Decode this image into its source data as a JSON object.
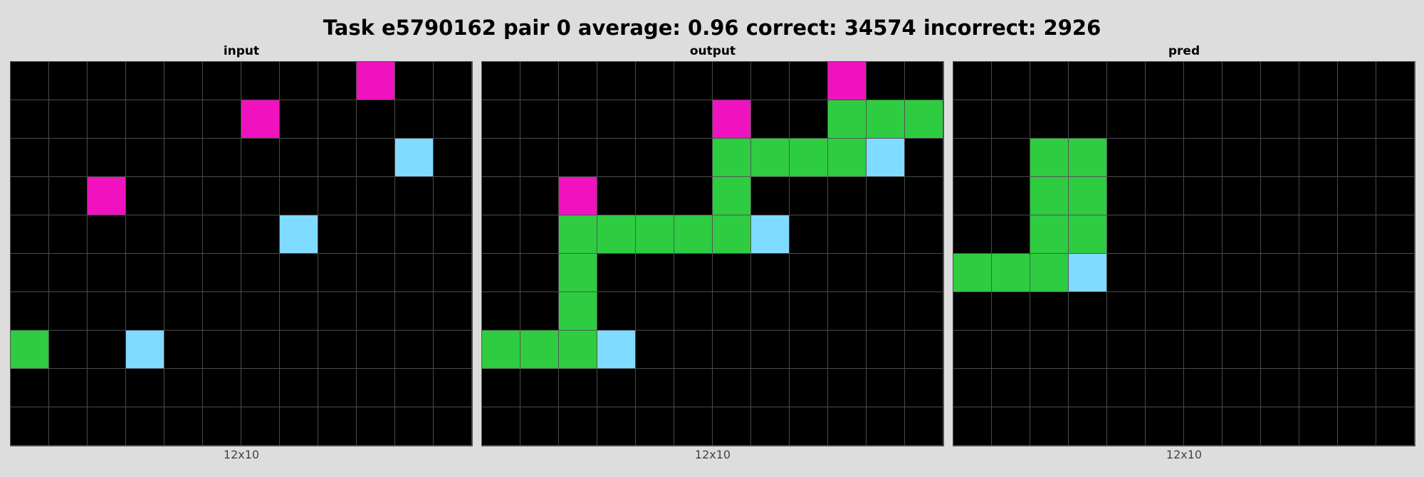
{
  "title": "Task e5790162 pair 0 average: 0.96 correct: 34574 incorrect: 2926",
  "colors": {
    "0": "#000000",
    "2": "#2ecc40",
    "6": "#f012be",
    "8": "#7fdbff"
  },
  "panels": [
    {
      "title": "input",
      "caption": "12x10",
      "grid": [
        [
          0,
          0,
          0,
          0,
          0,
          0,
          0,
          0,
          0,
          6,
          0,
          0
        ],
        [
          0,
          0,
          0,
          0,
          0,
          0,
          6,
          0,
          0,
          0,
          0,
          0
        ],
        [
          0,
          0,
          0,
          0,
          0,
          0,
          0,
          0,
          0,
          0,
          8,
          0
        ],
        [
          0,
          0,
          6,
          0,
          0,
          0,
          0,
          0,
          0,
          0,
          0,
          0
        ],
        [
          0,
          0,
          0,
          0,
          0,
          0,
          0,
          8,
          0,
          0,
          0,
          0
        ],
        [
          0,
          0,
          0,
          0,
          0,
          0,
          0,
          0,
          0,
          0,
          0,
          0
        ],
        [
          0,
          0,
          0,
          0,
          0,
          0,
          0,
          0,
          0,
          0,
          0,
          0
        ],
        [
          2,
          0,
          0,
          8,
          0,
          0,
          0,
          0,
          0,
          0,
          0,
          0
        ],
        [
          0,
          0,
          0,
          0,
          0,
          0,
          0,
          0,
          0,
          0,
          0,
          0
        ],
        [
          0,
          0,
          0,
          0,
          0,
          0,
          0,
          0,
          0,
          0,
          0,
          0
        ]
      ]
    },
    {
      "title": "output",
      "caption": "12x10",
      "grid": [
        [
          0,
          0,
          0,
          0,
          0,
          0,
          0,
          0,
          0,
          6,
          0,
          0
        ],
        [
          0,
          0,
          0,
          0,
          0,
          0,
          6,
          0,
          0,
          2,
          2,
          2
        ],
        [
          0,
          0,
          0,
          0,
          0,
          0,
          2,
          2,
          2,
          2,
          8,
          0
        ],
        [
          0,
          0,
          6,
          0,
          0,
          0,
          2,
          0,
          0,
          0,
          0,
          0
        ],
        [
          0,
          0,
          2,
          2,
          2,
          2,
          2,
          8,
          0,
          0,
          0,
          0
        ],
        [
          0,
          0,
          2,
          0,
          0,
          0,
          0,
          0,
          0,
          0,
          0,
          0
        ],
        [
          0,
          0,
          2,
          0,
          0,
          0,
          0,
          0,
          0,
          0,
          0,
          0
        ],
        [
          2,
          2,
          2,
          8,
          0,
          0,
          0,
          0,
          0,
          0,
          0,
          0
        ],
        [
          0,
          0,
          0,
          0,
          0,
          0,
          0,
          0,
          0,
          0,
          0,
          0
        ],
        [
          0,
          0,
          0,
          0,
          0,
          0,
          0,
          0,
          0,
          0,
          0,
          0
        ]
      ]
    },
    {
      "title": "pred",
      "caption": "12x10",
      "grid": [
        [
          0,
          0,
          0,
          0,
          0,
          0,
          0,
          0,
          0,
          0,
          0,
          0
        ],
        [
          0,
          0,
          0,
          0,
          0,
          0,
          0,
          0,
          0,
          0,
          0,
          0
        ],
        [
          0,
          0,
          2,
          2,
          0,
          0,
          0,
          0,
          0,
          0,
          0,
          0
        ],
        [
          0,
          0,
          2,
          2,
          0,
          0,
          0,
          0,
          0,
          0,
          0,
          0
        ],
        [
          0,
          0,
          2,
          2,
          0,
          0,
          0,
          0,
          0,
          0,
          0,
          0
        ],
        [
          2,
          2,
          2,
          8,
          0,
          0,
          0,
          0,
          0,
          0,
          0,
          0
        ],
        [
          0,
          0,
          0,
          0,
          0,
          0,
          0,
          0,
          0,
          0,
          0,
          0
        ],
        [
          0,
          0,
          0,
          0,
          0,
          0,
          0,
          0,
          0,
          0,
          0,
          0
        ],
        [
          0,
          0,
          0,
          0,
          0,
          0,
          0,
          0,
          0,
          0,
          0,
          0
        ],
        [
          0,
          0,
          0,
          0,
          0,
          0,
          0,
          0,
          0,
          0,
          0,
          0
        ]
      ]
    }
  ]
}
